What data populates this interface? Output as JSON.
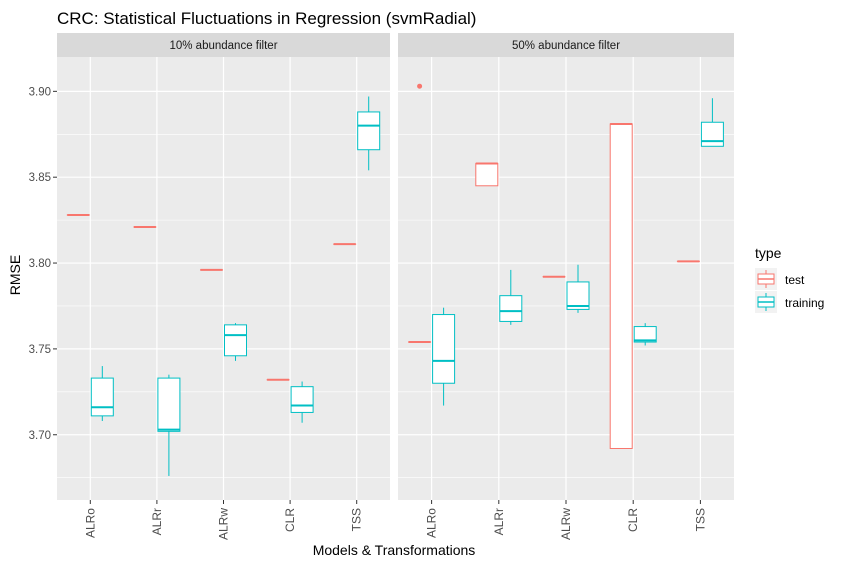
{
  "chart_data": {
    "type": "boxplot",
    "title": "CRC: Statistical Fluctuations in Regression (svmRadial)",
    "xlabel": "Models & Transformations",
    "ylabel": "RMSE",
    "ylim": [
      3.662,
      3.92
    ],
    "yticks": [
      "3.70",
      "3.75",
      "3.80",
      "3.85",
      "3.90"
    ],
    "ytick_values": [
      3.7,
      3.75,
      3.8,
      3.85,
      3.9
    ],
    "categories": [
      "ALRo",
      "ALRr",
      "ALRw",
      "CLR",
      "TSS"
    ],
    "grid": true,
    "legend": {
      "title": "type",
      "position": "right",
      "entries": [
        {
          "name": "test",
          "color": "#F8766D"
        },
        {
          "name": "training",
          "color": "#00BFC4"
        }
      ]
    },
    "panels": [
      {
        "label": "10% abundance filter",
        "groups": [
          {
            "category": "ALRo",
            "series": "test",
            "min": 3.828,
            "q1": 3.828,
            "median": 3.828,
            "q3": 3.828,
            "max": 3.828,
            "outliers": []
          },
          {
            "category": "ALRo",
            "series": "training",
            "min": 3.708,
            "q1": 3.711,
            "median": 3.716,
            "q3": 3.733,
            "max": 3.74,
            "outliers": []
          },
          {
            "category": "ALRr",
            "series": "test",
            "min": 3.821,
            "q1": 3.821,
            "median": 3.821,
            "q3": 3.821,
            "max": 3.821,
            "outliers": []
          },
          {
            "category": "ALRr",
            "series": "training",
            "min": 3.676,
            "q1": 3.702,
            "median": 3.703,
            "q3": 3.733,
            "max": 3.735,
            "outliers": []
          },
          {
            "category": "ALRw",
            "series": "test",
            "min": 3.796,
            "q1": 3.796,
            "median": 3.796,
            "q3": 3.796,
            "max": 3.796,
            "outliers": []
          },
          {
            "category": "ALRw",
            "series": "training",
            "min": 3.743,
            "q1": 3.746,
            "median": 3.758,
            "q3": 3.764,
            "max": 3.765,
            "outliers": []
          },
          {
            "category": "CLR",
            "series": "test",
            "min": 3.732,
            "q1": 3.732,
            "median": 3.732,
            "q3": 3.732,
            "max": 3.732,
            "outliers": []
          },
          {
            "category": "CLR",
            "series": "training",
            "min": 3.707,
            "q1": 3.713,
            "median": 3.717,
            "q3": 3.728,
            "max": 3.731,
            "outliers": []
          },
          {
            "category": "TSS",
            "series": "test",
            "min": 3.811,
            "q1": 3.811,
            "median": 3.811,
            "q3": 3.811,
            "max": 3.811,
            "outliers": []
          },
          {
            "category": "TSS",
            "series": "training",
            "min": 3.854,
            "q1": 3.866,
            "median": 3.88,
            "q3": 3.888,
            "max": 3.897,
            "outliers": []
          }
        ]
      },
      {
        "label": "50% abundance filter",
        "groups": [
          {
            "category": "ALRo",
            "series": "test",
            "min": 3.754,
            "q1": 3.754,
            "median": 3.754,
            "q3": 3.754,
            "max": 3.754,
            "outliers": [
              3.903
            ]
          },
          {
            "category": "ALRo",
            "series": "training",
            "min": 3.717,
            "q1": 3.73,
            "median": 3.743,
            "q3": 3.77,
            "max": 3.774,
            "outliers": []
          },
          {
            "category": "ALRr",
            "series": "test",
            "min": 3.845,
            "q1": 3.845,
            "median": 3.858,
            "q3": 3.858,
            "max": 3.858,
            "outliers": []
          },
          {
            "category": "ALRr",
            "series": "training",
            "min": 3.764,
            "q1": 3.766,
            "median": 3.772,
            "q3": 3.781,
            "max": 3.796,
            "outliers": []
          },
          {
            "category": "ALRw",
            "series": "test",
            "min": 3.792,
            "q1": 3.792,
            "median": 3.792,
            "q3": 3.792,
            "max": 3.792,
            "outliers": []
          },
          {
            "category": "ALRw",
            "series": "training",
            "min": 3.771,
            "q1": 3.773,
            "median": 3.775,
            "q3": 3.789,
            "max": 3.799,
            "outliers": []
          },
          {
            "category": "CLR",
            "series": "test",
            "min": 3.692,
            "q1": 3.692,
            "median": 3.881,
            "q3": 3.881,
            "max": 3.881,
            "outliers": []
          },
          {
            "category": "CLR",
            "series": "training",
            "min": 3.752,
            "q1": 3.754,
            "median": 3.755,
            "q3": 3.763,
            "max": 3.765,
            "outliers": []
          },
          {
            "category": "TSS",
            "series": "test",
            "min": 3.801,
            "q1": 3.801,
            "median": 3.801,
            "q3": 3.801,
            "max": 3.801,
            "outliers": []
          },
          {
            "category": "TSS",
            "series": "training",
            "min": 3.868,
            "q1": 3.868,
            "median": 3.871,
            "q3": 3.882,
            "max": 3.896,
            "outliers": []
          }
        ]
      }
    ]
  }
}
